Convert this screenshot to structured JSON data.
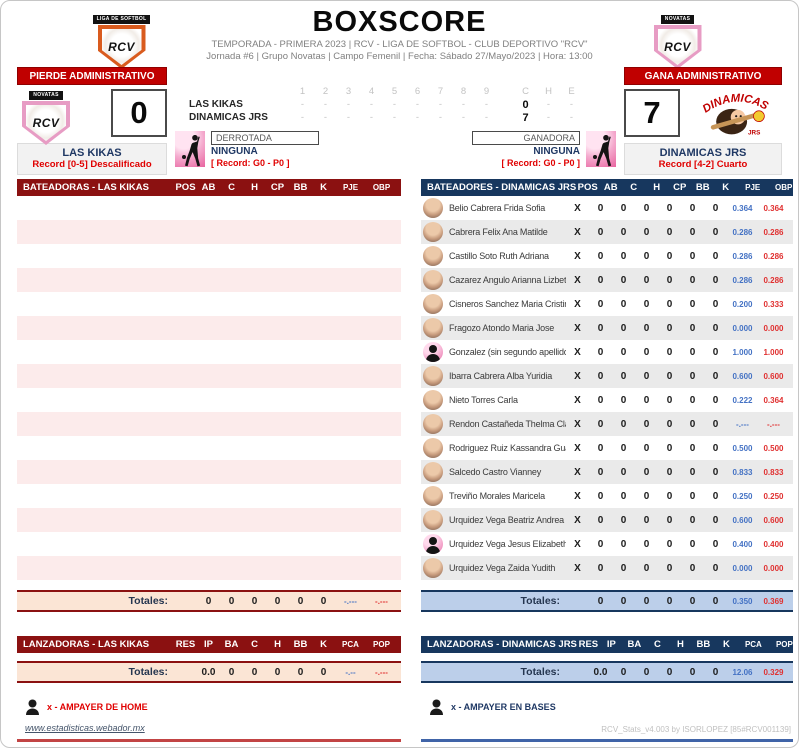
{
  "header": {
    "title": "BOXSCORE",
    "subtitle1": "TEMPORADA - PRIMERA 2023 | RCV - LIGA DE SOFTBOL - CLUB DEPORTIVO \"RCV\"",
    "subtitle2": "Jornada #6 | Grupo Novatas | Campo Femenil | Fecha: Sábado 27/Mayo/2023 | Hora: 13:00",
    "logo_left": {
      "banner": "LIGA DE SOFTBOL",
      "text": "RCV"
    },
    "logo_right": {
      "banner": "NOVATAS",
      "text": "RCV"
    }
  },
  "scoreboard": {
    "away": {
      "banner": "PIERDE ADMINISTRATIVO",
      "runs": "0",
      "team": "LAS KIKAS",
      "record": "Record  [0-5] Descalificado",
      "logo_banner": "NOVATAS",
      "logo_text": "RCV"
    },
    "home": {
      "banner": "GANA ADMINISTRATIVO",
      "runs": "7",
      "team": "DINAMICAS JRS",
      "record": "Record  [4-2] Cuarto",
      "logo_text": "DINAMICAS",
      "logo_sub": "JRS"
    },
    "linescore": {
      "innings": [
        "1",
        "2",
        "3",
        "4",
        "5",
        "6",
        "7",
        "8",
        "9"
      ],
      "extra": [
        "C",
        "H",
        "E"
      ],
      "rows": [
        {
          "team": "LAS KIKAS",
          "innings": [
            "-",
            "-",
            "-",
            "-",
            "-",
            "-",
            "-",
            "-",
            "-"
          ],
          "C": "0",
          "H": "-",
          "E": "-"
        },
        {
          "team": "DINAMICAS JRS",
          "innings": [
            "-",
            "-",
            "-",
            "-",
            "-",
            "-",
            "-",
            "-",
            "-"
          ],
          "C": "7",
          "H": "-",
          "E": "-"
        }
      ]
    },
    "loser": {
      "box": "DERROTADA",
      "pitcher": "NINGUNA",
      "record": "[ Record: G0 - P0 ]"
    },
    "winner": {
      "box": "GANADORA",
      "pitcher": "NINGUNA",
      "record": "[ Record: G0 - P0 ]"
    }
  },
  "left": {
    "batting": {
      "title": "BATEADORAS - LAS KIKAS",
      "columns": [
        "POS",
        "AB",
        "C",
        "H",
        "CP",
        "BB",
        "K",
        "PJE",
        "OBP"
      ],
      "empty_rows": 16,
      "totals": {
        "label": "Totales:",
        "values": [
          "0",
          "0",
          "0",
          "0",
          "0",
          "0"
        ],
        "rates": [
          "-.---",
          "-.---"
        ]
      }
    },
    "pitching": {
      "title": "LANZADORAS - LAS KIKAS",
      "columns": [
        "RES",
        "IP",
        "BA",
        "C",
        "H",
        "BB",
        "K",
        "PCA",
        "POP"
      ],
      "totals": {
        "label": "Totales:",
        "values": [
          "0.0",
          "0",
          "0",
          "0",
          "0",
          "0"
        ],
        "rates": [
          "-.--",
          "-.---"
        ]
      }
    },
    "footer_note": "x - AMPAYER DE HOME",
    "link": "www.estadisticas.webador.mx"
  },
  "right": {
    "batting": {
      "title": "BATEADORES - DINAMICAS JRS",
      "columns": [
        "POS",
        "AB",
        "C",
        "H",
        "CP",
        "BB",
        "K",
        "PJE",
        "OBP"
      ],
      "rows": [
        {
          "name": "Belio Cabrera Frida Sofia",
          "avatar": "photo",
          "pos": "X",
          "stats": [
            "0",
            "0",
            "0",
            "0",
            "0",
            "0"
          ],
          "pje": "0.364",
          "obp": "0.364"
        },
        {
          "name": "Cabrera Felix Ana Matilde",
          "avatar": "photo",
          "pos": "X",
          "stats": [
            "0",
            "0",
            "0",
            "0",
            "0",
            "0"
          ],
          "pje": "0.286",
          "obp": "0.286"
        },
        {
          "name": "Castillo Soto Ruth Adriana",
          "avatar": "photo",
          "pos": "X",
          "stats": [
            "0",
            "0",
            "0",
            "0",
            "0",
            "0"
          ],
          "pje": "0.286",
          "obp": "0.286"
        },
        {
          "name": "Cazarez Angulo Arianna Lizbeth",
          "avatar": "photo",
          "pos": "X",
          "stats": [
            "0",
            "0",
            "0",
            "0",
            "0",
            "0"
          ],
          "pje": "0.286",
          "obp": "0.286"
        },
        {
          "name": "Cisneros Sanchez Maria Cristina",
          "avatar": "photo",
          "pos": "X",
          "stats": [
            "0",
            "0",
            "0",
            "0",
            "0",
            "0"
          ],
          "pje": "0.200",
          "obp": "0.333"
        },
        {
          "name": "Fragozo Atondo Maria Jose",
          "avatar": "photo",
          "pos": "X",
          "stats": [
            "0",
            "0",
            "0",
            "0",
            "0",
            "0"
          ],
          "pje": "0.000",
          "obp": "0.000"
        },
        {
          "name": "Gonzalez (sin segundo apellido) Maria De",
          "avatar": "sil",
          "pos": "X",
          "stats": [
            "0",
            "0",
            "0",
            "0",
            "0",
            "0"
          ],
          "pje": "1.000",
          "obp": "1.000"
        },
        {
          "name": "Ibarra Cabrera Alba Yuridia",
          "avatar": "photo",
          "pos": "X",
          "stats": [
            "0",
            "0",
            "0",
            "0",
            "0",
            "0"
          ],
          "pje": "0.600",
          "obp": "0.600"
        },
        {
          "name": "Nieto Torres Carla",
          "avatar": "photo",
          "pos": "X",
          "stats": [
            "0",
            "0",
            "0",
            "0",
            "0",
            "0"
          ],
          "pje": "0.222",
          "obp": "0.364"
        },
        {
          "name": "Rendon Castañeda Thelma Clarisa",
          "avatar": "photo",
          "pos": "X",
          "stats": [
            "0",
            "0",
            "0",
            "0",
            "0",
            "0"
          ],
          "pje": "-.---",
          "obp": "-.---"
        },
        {
          "name": "Rodriguez Ruiz Kassandra Guadalupe",
          "avatar": "photo",
          "pos": "X",
          "stats": [
            "0",
            "0",
            "0",
            "0",
            "0",
            "0"
          ],
          "pje": "0.500",
          "obp": "0.500"
        },
        {
          "name": "Salcedo Castro Vianney",
          "avatar": "photo",
          "pos": "X",
          "stats": [
            "0",
            "0",
            "0",
            "0",
            "0",
            "0"
          ],
          "pje": "0.833",
          "obp": "0.833"
        },
        {
          "name": "Treviño Morales Maricela",
          "avatar": "photo",
          "pos": "X",
          "stats": [
            "0",
            "0",
            "0",
            "0",
            "0",
            "0"
          ],
          "pje": "0.250",
          "obp": "0.250"
        },
        {
          "name": "Urquidez Vega Beatriz Andrea",
          "avatar": "photo",
          "pos": "X",
          "stats": [
            "0",
            "0",
            "0",
            "0",
            "0",
            "0"
          ],
          "pje": "0.600",
          "obp": "0.600"
        },
        {
          "name": "Urquidez Vega Jesus Elizabeth",
          "avatar": "sil",
          "pos": "X",
          "stats": [
            "0",
            "0",
            "0",
            "0",
            "0",
            "0"
          ],
          "pje": "0.400",
          "obp": "0.400"
        },
        {
          "name": "Urquidez Vega Zaida Yudith",
          "avatar": "photo",
          "pos": "X",
          "stats": [
            "0",
            "0",
            "0",
            "0",
            "0",
            "0"
          ],
          "pje": "0.000",
          "obp": "0.000"
        }
      ],
      "totals": {
        "label": "Totales:",
        "values": [
          "0",
          "0",
          "0",
          "0",
          "0",
          "0"
        ],
        "rates": [
          "0.350",
          "0.369"
        ]
      }
    },
    "pitching": {
      "title": "LANZADORAS - DINAMICAS JRS",
      "columns": [
        "RES",
        "IP",
        "BA",
        "C",
        "H",
        "BB",
        "K",
        "PCA",
        "POP"
      ],
      "totals": {
        "label": "Totales:",
        "values": [
          "0.0",
          "0",
          "0",
          "0",
          "0",
          "0"
        ],
        "rates": [
          "12.06",
          "0.329"
        ]
      }
    },
    "footer_note": "x - AMPAYER EN BASES",
    "credit": "RCV_Stats_v4.003 by ISORLOPEZ [85#RCV001139]"
  },
  "colors": {
    "maroon": "#8b1111",
    "navy": "#17375e",
    "banner_red": "#c00000",
    "rate_blue": "#4472c4",
    "rate_red": "#e03030",
    "row_pink": "#fcebeb",
    "row_gray": "#eaeaea",
    "totals_peach": "#fbe5d5",
    "totals_blue": "#bccfea"
  }
}
